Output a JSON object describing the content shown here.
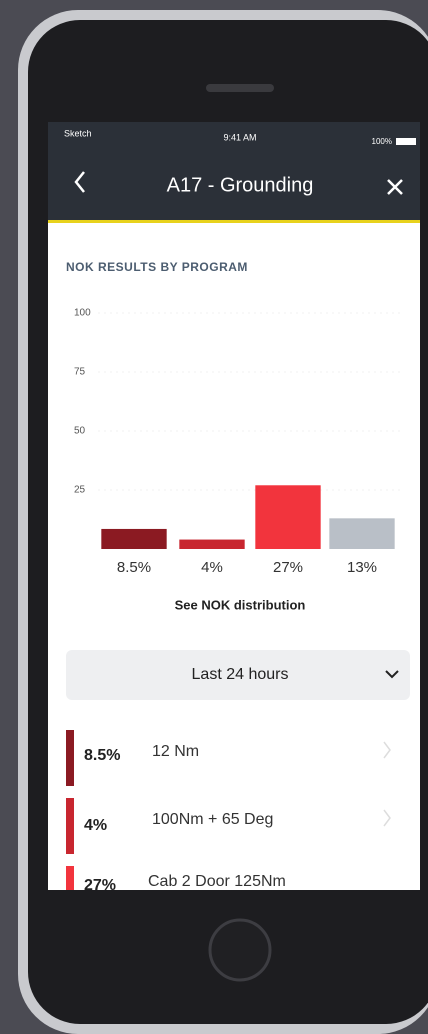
{
  "status_bar": {
    "carrier": "Sketch",
    "time": "9:41 AM",
    "battery": "100%"
  },
  "header": {
    "title": "A17 - Grounding"
  },
  "chart_data": {
    "type": "bar",
    "title": "NOK RESULTS BY PROGRAM",
    "values": [
      8.5,
      4,
      27,
      13
    ],
    "value_labels": [
      "8.5%",
      "4%",
      "27%",
      "13%"
    ],
    "colors": [
      "#8b1a22",
      "#c8262f",
      "#f2343d",
      "#b9bfc7"
    ],
    "ylim": [
      0,
      100
    ],
    "yticks": [
      25,
      50,
      75,
      100
    ],
    "grid": true
  },
  "link": "See NOK distribution",
  "filter": {
    "label": "Last 24 hours"
  },
  "list": [
    {
      "percent": "8.5%",
      "name": "12 Nm"
    },
    {
      "percent": "4%",
      "name": "100Nm + 65 Deg"
    },
    {
      "percent": "27%",
      "name": "Cab 2 Door 125Nm"
    }
  ]
}
